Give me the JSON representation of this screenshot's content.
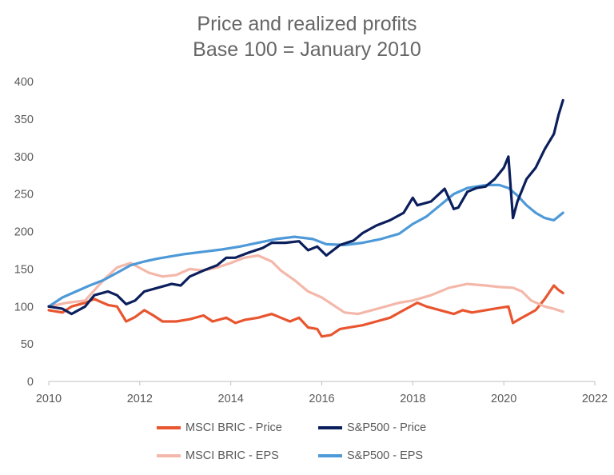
{
  "chart_data": {
    "type": "line",
    "title": "Price and realized profits",
    "subtitle": "Base 100 = January 2010",
    "xlabel": "",
    "ylabel": "",
    "xlim": [
      2010,
      2022
    ],
    "ylim": [
      0,
      400
    ],
    "x_ticks": [
      "2010",
      "2012",
      "2014",
      "2016",
      "2018",
      "2020",
      "2022"
    ],
    "y_ticks": [
      "0",
      "50",
      "100",
      "150",
      "200",
      "250",
      "300",
      "350",
      "400"
    ],
    "legend_position": "bottom",
    "series": [
      {
        "name": "MSCI BRIC - Price",
        "color": "#E8552F",
        "points": [
          [
            2010.0,
            95
          ],
          [
            2010.3,
            92
          ],
          [
            2010.5,
            100
          ],
          [
            2010.8,
            105
          ],
          [
            2011.0,
            110
          ],
          [
            2011.3,
            102
          ],
          [
            2011.5,
            100
          ],
          [
            2011.7,
            80
          ],
          [
            2011.9,
            86
          ],
          [
            2012.1,
            95
          ],
          [
            2012.3,
            88
          ],
          [
            2012.5,
            80
          ],
          [
            2012.8,
            80
          ],
          [
            2013.1,
            83
          ],
          [
            2013.4,
            88
          ],
          [
            2013.6,
            80
          ],
          [
            2013.9,
            85
          ],
          [
            2014.1,
            78
          ],
          [
            2014.3,
            82
          ],
          [
            2014.6,
            85
          ],
          [
            2014.9,
            90
          ],
          [
            2015.1,
            85
          ],
          [
            2015.3,
            80
          ],
          [
            2015.5,
            85
          ],
          [
            2015.7,
            72
          ],
          [
            2015.9,
            70
          ],
          [
            2016.0,
            60
          ],
          [
            2016.2,
            62
          ],
          [
            2016.4,
            70
          ],
          [
            2016.7,
            73
          ],
          [
            2016.9,
            75
          ],
          [
            2017.2,
            80
          ],
          [
            2017.5,
            85
          ],
          [
            2017.8,
            95
          ],
          [
            2018.1,
            105
          ],
          [
            2018.3,
            100
          ],
          [
            2018.6,
            95
          ],
          [
            2018.9,
            90
          ],
          [
            2019.1,
            95
          ],
          [
            2019.3,
            92
          ],
          [
            2019.6,
            95
          ],
          [
            2019.9,
            98
          ],
          [
            2020.1,
            100
          ],
          [
            2020.2,
            78
          ],
          [
            2020.4,
            85
          ],
          [
            2020.7,
            95
          ],
          [
            2020.9,
            110
          ],
          [
            2021.1,
            128
          ],
          [
            2021.2,
            122
          ],
          [
            2021.3,
            118
          ]
        ]
      },
      {
        "name": "S&P500 - Price",
        "color": "#0B1F5C",
        "points": [
          [
            2010.0,
            100
          ],
          [
            2010.3,
            97
          ],
          [
            2010.5,
            90
          ],
          [
            2010.8,
            100
          ],
          [
            2011.0,
            115
          ],
          [
            2011.3,
            120
          ],
          [
            2011.5,
            115
          ],
          [
            2011.7,
            103
          ],
          [
            2011.9,
            108
          ],
          [
            2012.1,
            120
          ],
          [
            2012.4,
            125
          ],
          [
            2012.7,
            130
          ],
          [
            2012.9,
            128
          ],
          [
            2013.1,
            140
          ],
          [
            2013.4,
            148
          ],
          [
            2013.7,
            155
          ],
          [
            2013.9,
            165
          ],
          [
            2014.1,
            165
          ],
          [
            2014.4,
            172
          ],
          [
            2014.7,
            178
          ],
          [
            2014.9,
            185
          ],
          [
            2015.2,
            185
          ],
          [
            2015.5,
            187
          ],
          [
            2015.7,
            175
          ],
          [
            2015.9,
            180
          ],
          [
            2016.1,
            168
          ],
          [
            2016.4,
            182
          ],
          [
            2016.7,
            188
          ],
          [
            2016.9,
            198
          ],
          [
            2017.2,
            208
          ],
          [
            2017.5,
            215
          ],
          [
            2017.8,
            225
          ],
          [
            2018.0,
            245
          ],
          [
            2018.1,
            235
          ],
          [
            2018.4,
            240
          ],
          [
            2018.7,
            257
          ],
          [
            2018.9,
            230
          ],
          [
            2019.0,
            232
          ],
          [
            2019.2,
            253
          ],
          [
            2019.4,
            258
          ],
          [
            2019.6,
            260
          ],
          [
            2019.8,
            270
          ],
          [
            2020.0,
            285
          ],
          [
            2020.1,
            300
          ],
          [
            2020.2,
            218
          ],
          [
            2020.3,
            240
          ],
          [
            2020.5,
            270
          ],
          [
            2020.7,
            285
          ],
          [
            2020.9,
            310
          ],
          [
            2021.1,
            330
          ],
          [
            2021.2,
            355
          ],
          [
            2021.3,
            375
          ]
        ]
      },
      {
        "name": "MSCI BRIC - EPS",
        "color": "#F4B8AA",
        "points": [
          [
            2010.0,
            100
          ],
          [
            2010.4,
            105
          ],
          [
            2010.8,
            108
          ],
          [
            2011.2,
            135
          ],
          [
            2011.5,
            152
          ],
          [
            2011.8,
            158
          ],
          [
            2012.2,
            145
          ],
          [
            2012.5,
            140
          ],
          [
            2012.8,
            142
          ],
          [
            2013.1,
            150
          ],
          [
            2013.4,
            148
          ],
          [
            2013.7,
            152
          ],
          [
            2014.0,
            158
          ],
          [
            2014.3,
            165
          ],
          [
            2014.6,
            168
          ],
          [
            2014.9,
            160
          ],
          [
            2015.1,
            148
          ],
          [
            2015.4,
            135
          ],
          [
            2015.7,
            120
          ],
          [
            2016.0,
            112
          ],
          [
            2016.3,
            100
          ],
          [
            2016.5,
            92
          ],
          [
            2016.8,
            90
          ],
          [
            2017.1,
            95
          ],
          [
            2017.4,
            100
          ],
          [
            2017.7,
            105
          ],
          [
            2018.0,
            108
          ],
          [
            2018.4,
            115
          ],
          [
            2018.8,
            125
          ],
          [
            2019.2,
            130
          ],
          [
            2019.6,
            128
          ],
          [
            2019.9,
            126
          ],
          [
            2020.2,
            125
          ],
          [
            2020.4,
            120
          ],
          [
            2020.6,
            108
          ],
          [
            2020.9,
            100
          ],
          [
            2021.1,
            97
          ],
          [
            2021.3,
            93
          ]
        ]
      },
      {
        "name": "S&P500 - EPS",
        "color": "#4E9AD8",
        "points": [
          [
            2010.0,
            100
          ],
          [
            2010.3,
            112
          ],
          [
            2010.6,
            120
          ],
          [
            2010.9,
            128
          ],
          [
            2011.2,
            135
          ],
          [
            2011.5,
            145
          ],
          [
            2011.8,
            155
          ],
          [
            2012.1,
            160
          ],
          [
            2012.4,
            164
          ],
          [
            2012.7,
            167
          ],
          [
            2013.0,
            170
          ],
          [
            2013.4,
            173
          ],
          [
            2013.8,
            176
          ],
          [
            2014.2,
            180
          ],
          [
            2014.6,
            185
          ],
          [
            2015.0,
            190
          ],
          [
            2015.4,
            193
          ],
          [
            2015.8,
            190
          ],
          [
            2016.1,
            183
          ],
          [
            2016.5,
            182
          ],
          [
            2016.9,
            185
          ],
          [
            2017.3,
            190
          ],
          [
            2017.7,
            197
          ],
          [
            2018.0,
            210
          ],
          [
            2018.3,
            220
          ],
          [
            2018.6,
            235
          ],
          [
            2018.9,
            250
          ],
          [
            2019.2,
            258
          ],
          [
            2019.6,
            262
          ],
          [
            2019.9,
            262
          ],
          [
            2020.1,
            258
          ],
          [
            2020.3,
            248
          ],
          [
            2020.5,
            235
          ],
          [
            2020.7,
            225
          ],
          [
            2020.9,
            218
          ],
          [
            2021.1,
            215
          ],
          [
            2021.3,
            225
          ]
        ]
      }
    ]
  }
}
